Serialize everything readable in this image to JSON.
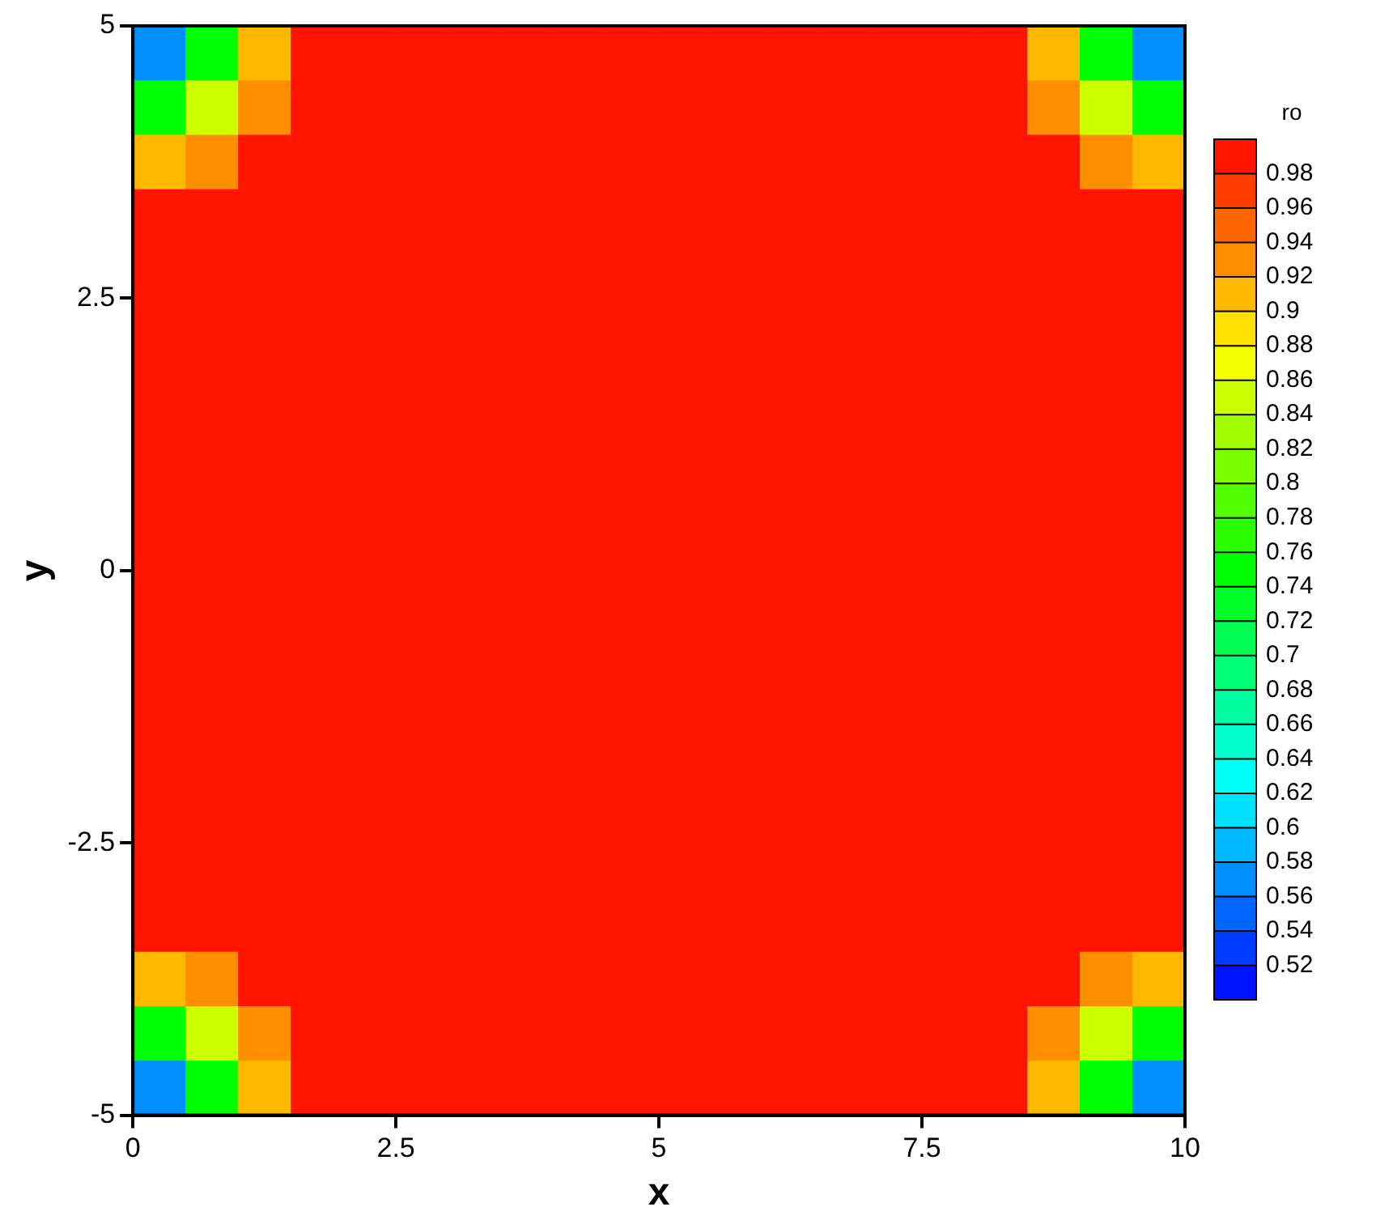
{
  "chart_data": {
    "type": "heatmap",
    "xlabel": "x",
    "ylabel": "y",
    "clabel": "ro",
    "x": [
      0.25,
      0.75,
      1.25,
      1.75,
      2.25,
      2.75,
      3.25,
      3.75,
      4.25,
      4.75,
      5.25,
      5.75,
      6.25,
      6.75,
      7.25,
      7.75,
      8.25,
      8.75,
      9.25,
      9.75
    ],
    "y": [
      4.75,
      4.25,
      3.75,
      3.25,
      2.75,
      2.25,
      1.75,
      1.25,
      0.75,
      0.25,
      -0.25,
      -0.75,
      -1.25,
      -1.75,
      -2.25,
      -2.75,
      -3.25,
      -3.75,
      -4.25,
      -4.75
    ],
    "xlim": [
      0,
      10
    ],
    "xticks": [
      0,
      2.5,
      5,
      7.5,
      10
    ],
    "ylim": [
      -5,
      5
    ],
    "yticks": [
      -5,
      -2.5,
      0,
      2.5,
      5
    ],
    "clim": [
      0.5,
      1
    ],
    "cticks": [
      0.52,
      0.54,
      0.56,
      0.58,
      0.6,
      0.62,
      0.64,
      0.66,
      0.68,
      0.7,
      0.72,
      0.74,
      0.76,
      0.78,
      0.8,
      0.82,
      0.84,
      0.86,
      0.88,
      0.9,
      0.92,
      0.94,
      0.96,
      0.98
    ],
    "cells": [
      [
        0.58,
        0.74,
        0.91,
        0.98,
        1,
        1,
        1,
        1,
        1,
        1,
        1,
        1,
        1,
        1,
        1,
        1,
        0.98,
        0.91,
        0.74,
        0.58
      ],
      [
        0.74,
        0.84,
        0.94,
        0.99,
        1,
        1,
        1,
        1,
        1,
        1,
        1,
        1,
        1,
        1,
        1,
        1,
        0.99,
        0.94,
        0.84,
        0.74
      ],
      [
        0.91,
        0.94,
        0.98,
        0.99,
        1,
        1,
        1,
        1,
        1,
        1,
        1,
        1,
        1,
        1,
        1,
        1,
        0.99,
        0.98,
        0.94,
        0.91
      ],
      [
        0.98,
        0.99,
        0.99,
        1,
        1,
        1,
        1,
        1,
        1,
        1,
        1,
        1,
        1,
        1,
        1,
        1,
        1,
        0.99,
        0.99,
        0.98
      ],
      [
        1,
        1,
        1,
        1,
        1,
        1,
        1,
        1,
        1,
        1,
        1,
        1,
        1,
        1,
        1,
        1,
        1,
        1,
        1,
        1
      ],
      [
        1,
        1,
        1,
        1,
        1,
        1,
        1,
        1,
        1,
        1,
        1,
        1,
        1,
        1,
        1,
        1,
        1,
        1,
        1,
        1
      ],
      [
        1,
        1,
        1,
        1,
        1,
        1,
        1,
        1,
        1,
        1,
        1,
        1,
        1,
        1,
        1,
        1,
        1,
        1,
        1,
        1
      ],
      [
        1,
        1,
        1,
        1,
        1,
        1,
        1,
        1,
        1,
        1,
        1,
        1,
        1,
        1,
        1,
        1,
        1,
        1,
        1,
        1
      ],
      [
        1,
        1,
        1,
        1,
        1,
        1,
        1,
        1,
        1,
        1,
        1,
        1,
        1,
        1,
        1,
        1,
        1,
        1,
        1,
        1
      ],
      [
        1,
        1,
        1,
        1,
        1,
        1,
        1,
        1,
        1,
        1,
        1,
        1,
        1,
        1,
        1,
        1,
        1,
        1,
        1,
        1
      ],
      [
        1,
        1,
        1,
        1,
        1,
        1,
        1,
        1,
        1,
        1,
        1,
        1,
        1,
        1,
        1,
        1,
        1,
        1,
        1,
        1
      ],
      [
        1,
        1,
        1,
        1,
        1,
        1,
        1,
        1,
        1,
        1,
        1,
        1,
        1,
        1,
        1,
        1,
        1,
        1,
        1,
        1
      ],
      [
        1,
        1,
        1,
        1,
        1,
        1,
        1,
        1,
        1,
        1,
        1,
        1,
        1,
        1,
        1,
        1,
        1,
        1,
        1,
        1
      ],
      [
        1,
        1,
        1,
        1,
        1,
        1,
        1,
        1,
        1,
        1,
        1,
        1,
        1,
        1,
        1,
        1,
        1,
        1,
        1,
        1
      ],
      [
        1,
        1,
        1,
        1,
        1,
        1,
        1,
        1,
        1,
        1,
        1,
        1,
        1,
        1,
        1,
        1,
        1,
        1,
        1,
        1
      ],
      [
        1,
        1,
        1,
        1,
        1,
        1,
        1,
        1,
        1,
        1,
        1,
        1,
        1,
        1,
        1,
        1,
        1,
        1,
        1,
        1
      ],
      [
        0.98,
        0.99,
        0.99,
        1,
        1,
        1,
        1,
        1,
        1,
        1,
        1,
        1,
        1,
        1,
        1,
        1,
        1,
        0.99,
        0.99,
        0.98
      ],
      [
        0.91,
        0.94,
        0.98,
        0.99,
        1,
        1,
        1,
        1,
        1,
        1,
        1,
        1,
        1,
        1,
        1,
        1,
        0.99,
        0.98,
        0.94,
        0.91
      ],
      [
        0.74,
        0.84,
        0.94,
        0.99,
        1,
        1,
        1,
        1,
        1,
        1,
        1,
        1,
        1,
        1,
        1,
        1,
        0.99,
        0.94,
        0.84,
        0.74
      ],
      [
        0.58,
        0.74,
        0.91,
        0.98,
        1,
        1,
        1,
        1,
        1,
        1,
        1,
        1,
        1,
        1,
        1,
        1,
        0.98,
        0.91,
        0.74,
        0.58
      ]
    ]
  }
}
